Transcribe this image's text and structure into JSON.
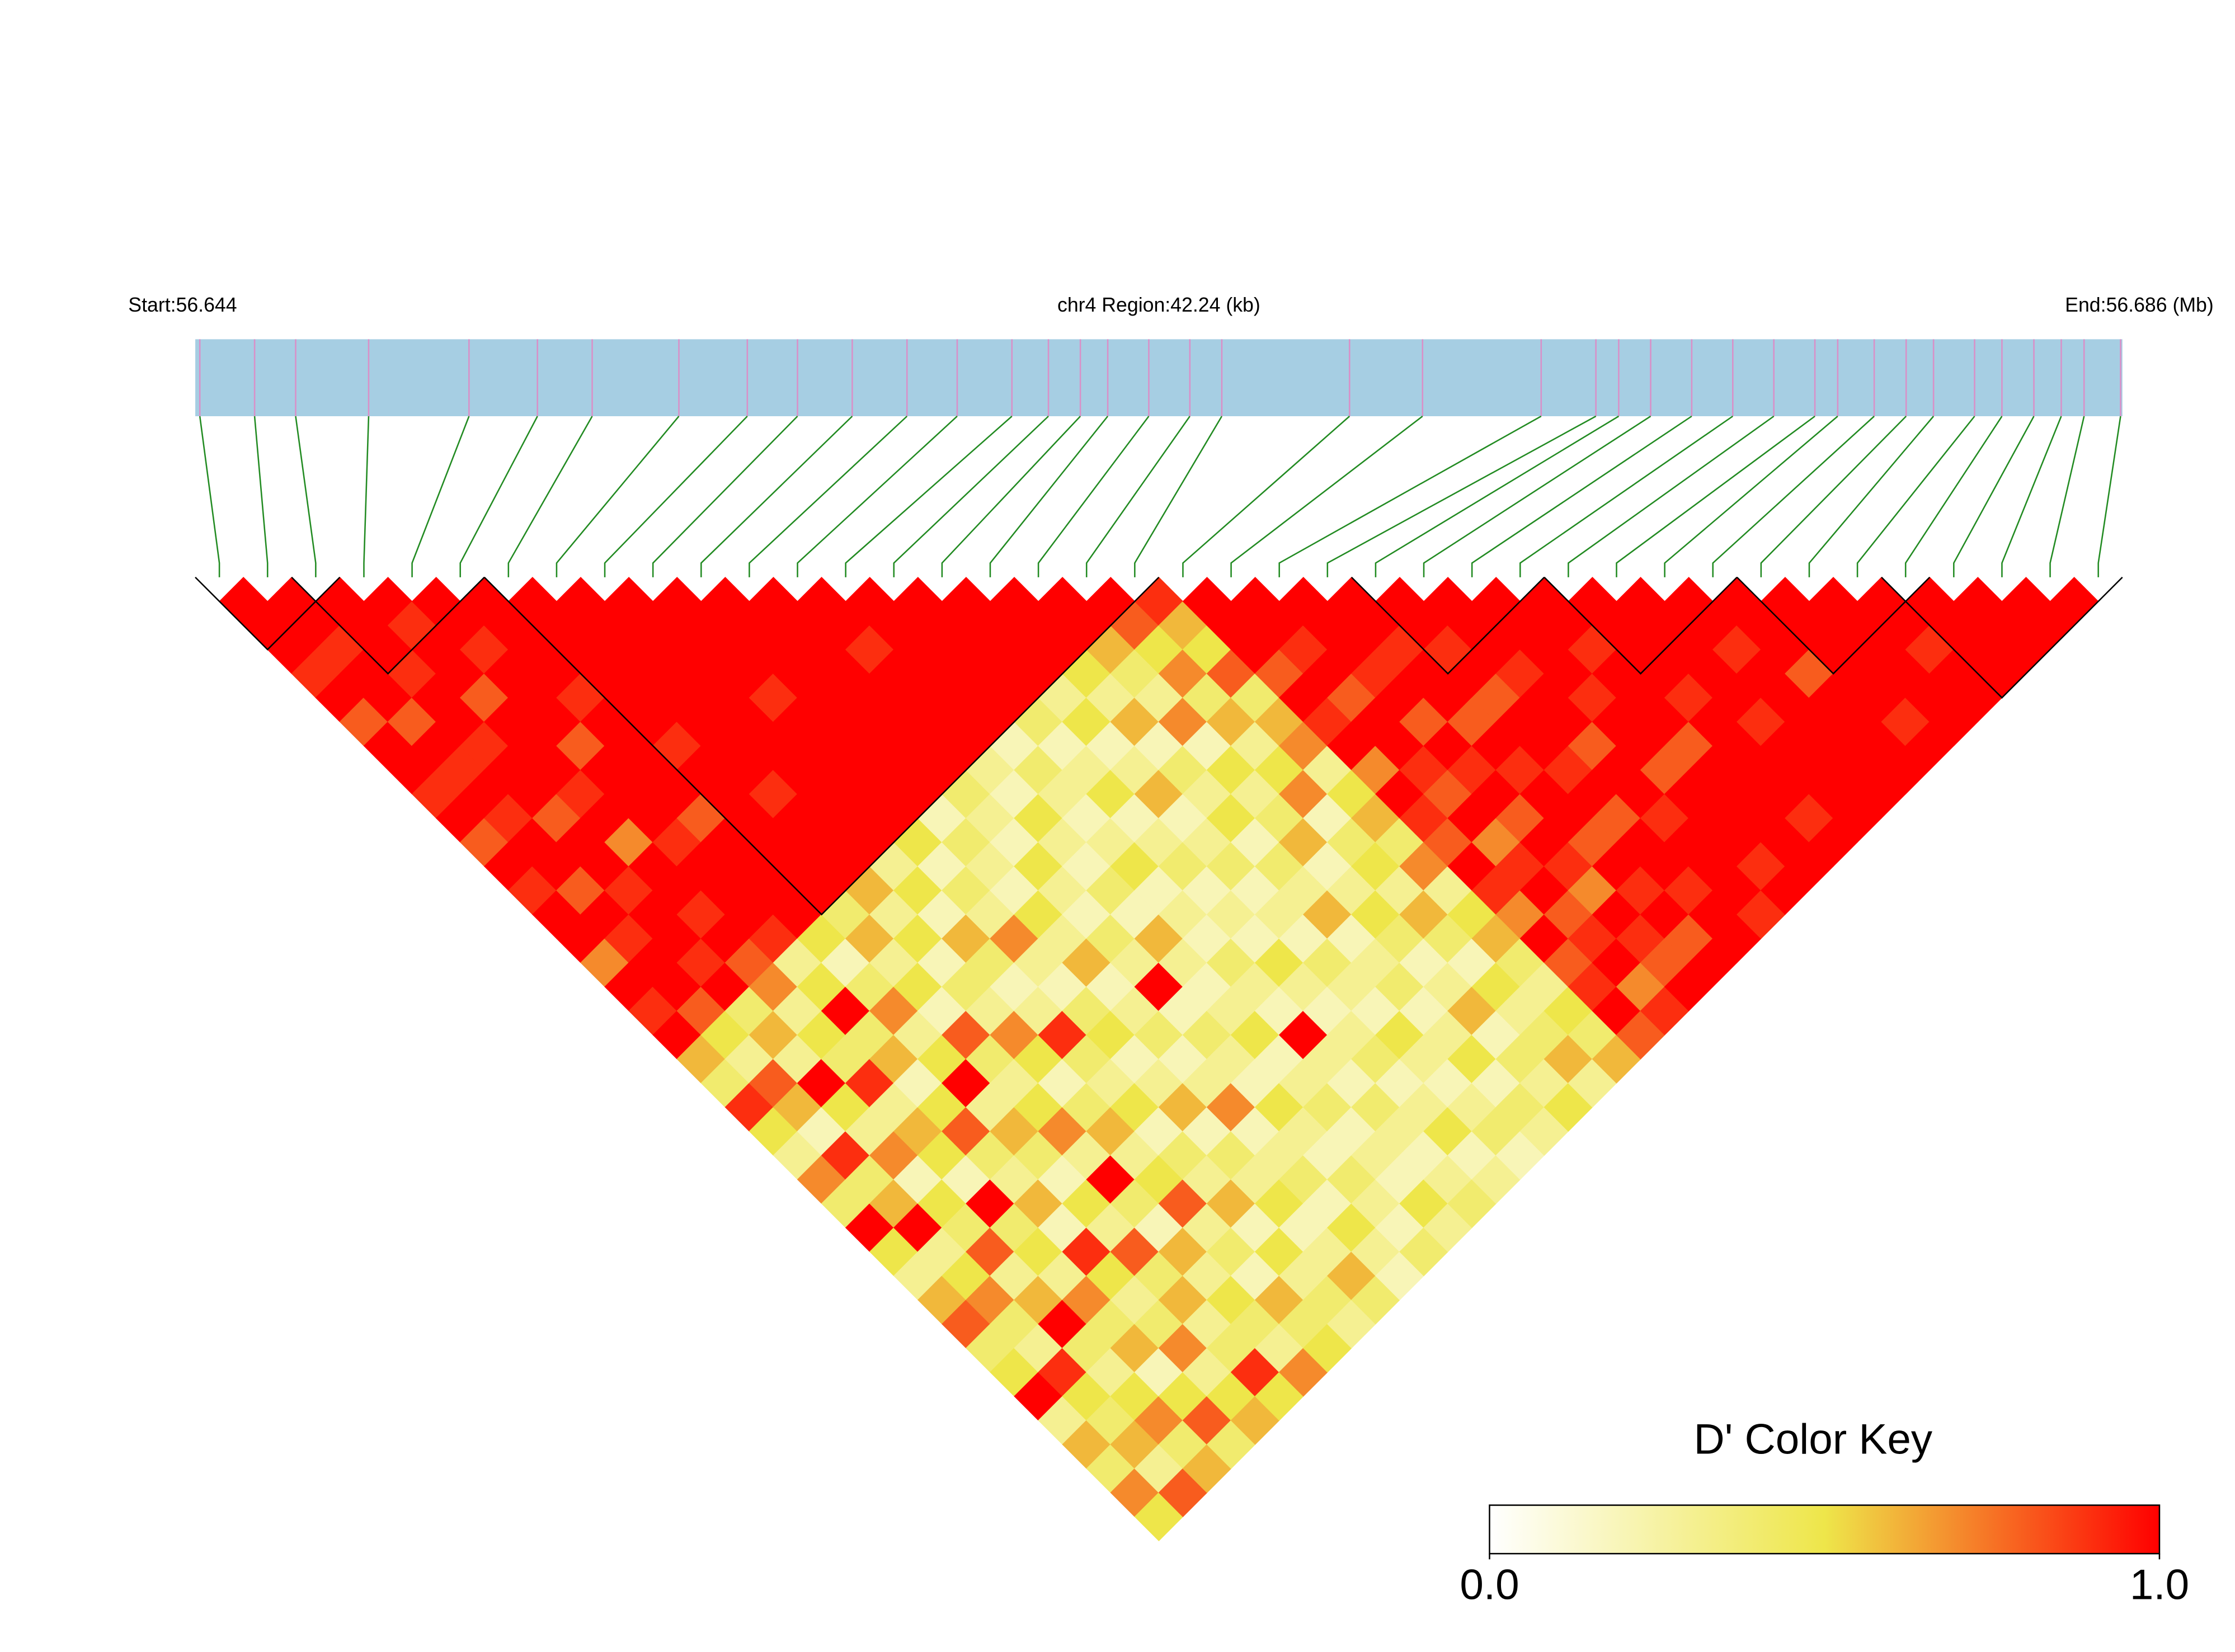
{
  "chart_data": {
    "type": "ld_heatmap",
    "start_label": "Start:56.644",
    "region_label": "chr4 Region:42.24 (kb)",
    "end_label": "End:56.686 (Mb)",
    "legend_title": "D' Color Key",
    "xlim": [
      56.644,
      56.68624
    ],
    "positions": [
      56.6441,
      56.6453,
      56.6462,
      56.6478,
      56.65,
      56.6515,
      56.6527,
      56.6546,
      56.6561,
      56.6572,
      56.6584,
      56.6596,
      56.6607,
      56.6619,
      56.6627,
      56.6634,
      56.664,
      56.6649,
      56.6658,
      56.6665,
      56.6693,
      56.6709,
      56.6735,
      56.6747,
      56.6752,
      56.6759,
      56.6768,
      56.6777,
      56.6786,
      56.6795,
      56.68,
      56.6808,
      56.6815,
      56.6821,
      56.683,
      56.6836,
      56.6843,
      56.6849,
      56.6854,
      56.6862
    ],
    "dprime": [
      [
        1,
        1,
        1,
        0.9,
        1,
        0.8,
        1,
        1,
        0.9,
        1,
        0.8,
        1,
        0.9,
        1,
        1,
        0.7,
        1,
        0.9,
        1,
        0.6,
        0.4,
        0.9,
        0.5,
        0.3,
        0.7,
        0.4,
        1,
        0.5,
        0.3,
        0.6,
        0.8,
        0.4,
        0.5,
        1,
        0.3,
        0.6,
        0.4,
        0.7,
        0.5
      ],
      [
        1,
        1,
        0.9,
        1,
        1,
        0.8,
        1,
        0.9,
        1,
        0.9,
        1,
        1,
        0.8,
        1,
        0.9,
        1,
        1,
        0.8,
        0.5,
        0.3,
        0.8,
        0.6,
        0.2,
        0.9,
        0.4,
        0.6,
        1,
        0.3,
        0.5,
        0.7,
        0.4,
        0.3,
        0.9,
        0.5,
        0.4,
        0.6,
        0.3,
        0.8
      ],
      [
        1,
        1,
        1,
        0.9,
        1,
        1,
        0.9,
        1,
        1,
        0.8,
        1,
        1,
        0.9,
        1,
        1,
        0.9,
        1,
        0.4,
        0.6,
        0.3,
        1,
        0.5,
        0.3,
        0.7,
        0.2,
        0.5,
        0.4,
        0.8,
        0.3,
        0.6,
        1,
        0.4,
        0.3,
        0.5,
        0.7,
        0.4,
        0.6
      ],
      [
        1,
        0.9,
        1,
        1,
        0.8,
        1,
        1,
        1,
        0.9,
        1,
        0.7,
        1,
        1,
        0.9,
        1,
        0.8,
        0.7,
        0.3,
        0.5,
        0.4,
        0.9,
        0.3,
        0.6,
        0.5,
        0.2,
        1,
        0.4,
        0.5,
        0.3,
        0.7,
        0.4,
        0.6,
        0.2,
        0.5,
        0.8,
        0.4
      ],
      [
        1,
        1,
        0.9,
        1,
        1,
        1,
        0.8,
        1,
        1,
        1,
        0.9,
        1,
        1,
        1,
        0.9,
        0.3,
        0.5,
        1,
        0.4,
        0.6,
        0.2,
        0.5,
        0.8,
        0.4,
        0.3,
        0.6,
        0.2,
        0.9,
        0.5,
        0.3,
        0.4,
        0.7,
        0.3,
        0.5,
        0.6
      ],
      [
        1,
        1,
        1,
        1,
        0.9,
        1,
        1,
        1,
        1,
        0.8,
        1,
        1,
        1,
        1,
        0.5,
        0.2,
        0.4,
        0.7,
        0.3,
        0.5,
        1,
        0.3,
        0.6,
        0.4,
        0.2,
        0.5,
        0.3,
        0.8,
        0.4,
        0.6,
        0.3,
        0.4,
        0.9,
        0.5
      ],
      [
        1,
        1,
        1,
        1,
        1,
        1,
        0.9,
        1,
        1,
        1,
        1,
        1,
        1,
        0.4,
        0.6,
        0.3,
        0.5,
        0.2,
        0.8,
        0.4,
        0.3,
        0.5,
        0.7,
        0.3,
        1,
        0.4,
        0.2,
        0.6,
        0.3,
        0.5,
        0.4,
        0.3,
        0.7
      ],
      [
        1,
        1,
        1,
        1,
        1,
        1,
        1,
        1,
        0.9,
        1,
        1,
        1,
        0.6,
        0.3,
        0.5,
        0.2,
        0.4,
        0.3,
        0.7,
        0.5,
        0.2,
        0.4,
        0.6,
        0.3,
        0.5,
        0.8,
        0.3,
        0.4,
        0.2,
        0.6,
        0.4,
        0.5
      ],
      [
        1,
        1,
        1,
        1,
        1,
        1,
        1,
        1,
        1,
        1,
        1,
        0.3,
        0.5,
        0.2,
        0.6,
        0.4,
        0.2,
        0.3,
        0.9,
        0.4,
        0.3,
        0.5,
        0.2,
        0.4,
        0.3,
        0.6,
        0.2,
        0.5,
        0.3,
        0.4,
        0.3
      ],
      [
        1,
        1,
        1,
        1,
        0.9,
        1,
        1,
        1,
        1,
        1,
        0.5,
        0.2,
        0.4,
        0.3,
        0.7,
        0.3,
        0.2,
        0.4,
        0.5,
        0.2,
        0.3,
        0.6,
        0.2,
        0.4,
        0.3,
        0.5,
        0.2,
        0.3,
        0.6,
        0.4
      ],
      [
        1,
        1,
        1,
        1,
        1,
        1,
        1,
        1,
        1,
        0.2,
        0.4,
        0.3,
        0.2,
        0.5,
        0.3,
        0.6,
        0.2,
        0.3,
        0.4,
        0.2,
        0.3,
        0.7,
        0.2,
        0.3,
        0.4,
        0.2,
        0.5,
        0.3,
        0.2
      ],
      [
        1,
        1,
        1,
        1,
        1,
        1,
        1,
        1,
        0.4,
        0.3,
        0.2,
        0.5,
        0.3,
        0.2,
        0.4,
        0.3,
        1,
        0.2,
        0.4,
        0.3,
        0.2,
        0.5,
        0.3,
        0.2,
        0.4,
        0.3,
        0.2,
        0.4
      ],
      [
        1,
        1,
        0.9,
        1,
        1,
        1,
        1,
        0.3,
        0.2,
        0.5,
        0.3,
        0.2,
        0.4,
        0.2,
        0.6,
        0.3,
        0.2,
        0.3,
        0.5,
        0.2,
        0.3,
        0.4,
        0.2,
        0.3,
        0.2,
        0.5,
        0.3
      ],
      [
        1,
        1,
        1,
        1,
        1,
        1,
        0.2,
        0.4,
        0.3,
        0.2,
        0.3,
        0.5,
        0.2,
        0.3,
        0.2,
        0.4,
        0.3,
        0.2,
        1,
        0.3,
        0.2,
        0.4,
        0.3,
        0.2,
        0.3,
        0.4
      ],
      [
        1,
        1,
        1,
        1,
        1,
        0.4,
        0.2,
        0.3,
        0.5,
        0.2,
        0.3,
        0.4,
        0.2,
        0.3,
        0.2,
        0.5,
        0.3,
        0.2,
        0.3,
        0.4,
        0.2,
        0.3,
        0.5,
        0.2,
        0.3
      ],
      [
        1,
        1,
        1,
        1,
        0.3,
        0.5,
        0.2,
        0.3,
        0.6,
        0.2,
        0.3,
        0.4,
        0.2,
        0.3,
        0.2,
        0.4,
        0.3,
        0.2,
        0.5,
        0.3,
        0.2,
        0.3,
        0.4,
        0.2
      ],
      [
        1,
        1,
        1,
        0.5,
        0.3,
        0.6,
        0.2,
        0.4,
        0.3,
        0.5,
        0.2,
        0.4,
        0.3,
        0.6,
        0.2,
        0.3,
        0.4,
        0.2,
        0.3,
        0.5,
        0.2,
        0.4,
        0.3
      ],
      [
        1,
        1,
        0.6,
        0.4,
        0.3,
        0.7,
        0.2,
        0.5,
        0.3,
        0.4,
        0.6,
        0.2,
        0.3,
        0.5,
        0.4,
        0.2,
        0.3,
        0.6,
        0.2,
        0.4,
        0.3,
        0.5
      ],
      [
        1,
        0.8,
        0.5,
        0.7,
        0.4,
        0.6,
        0.3,
        0.5,
        0.7,
        0.2,
        0.4,
        0.5,
        0.3,
        0.6,
        0.4,
        0.2,
        0.5,
        0.3,
        0.4,
        0.6,
        0.3
      ],
      [
        0.9,
        0.6,
        0.5,
        0.8,
        0.4,
        0.6,
        0.7,
        0.3,
        0.5,
        0.6,
        0.4,
        0.7,
        0.3,
        0.5,
        0.6,
        0.4,
        0.3,
        0.5,
        0.4,
        0.6
      ],
      [
        1,
        1,
        1,
        0.8,
        1,
        0.9,
        1,
        0.7,
        1,
        0.9,
        0.8,
        1,
        0.9,
        0.7,
        1,
        0.8,
        0.9,
        1,
        0.8
      ],
      [
        1,
        1,
        0.9,
        1,
        0.8,
        1,
        1,
        0.9,
        0.8,
        1,
        0.7,
        0.9,
        1,
        0.8,
        0.9,
        1,
        0.7,
        0.9
      ],
      [
        1,
        1,
        1,
        0.9,
        1,
        0.8,
        1,
        0.9,
        1,
        0.8,
        1,
        0.9,
        0.7,
        1,
        0.9,
        0.8,
        1
      ],
      [
        1,
        1,
        0.9,
        1,
        1,
        0.8,
        1,
        0.9,
        1,
        1,
        0.8,
        1,
        0.9,
        1,
        0.8,
        1
      ],
      [
        1,
        1,
        0.9,
        1,
        0.8,
        1,
        1,
        0.9,
        1,
        0.8,
        1,
        1,
        0.9,
        1,
        1
      ],
      [
        1,
        1,
        1,
        0.9,
        1,
        1,
        0.8,
        1,
        1,
        0.9,
        1,
        1,
        1,
        0.9
      ],
      [
        1,
        1,
        1,
        1,
        0.9,
        1,
        1,
        0.8,
        1,
        1,
        1,
        0.9,
        1
      ],
      [
        1,
        1,
        0.9,
        1,
        1,
        1,
        0.8,
        1,
        1,
        1,
        1,
        1
      ],
      [
        1,
        1,
        1,
        1,
        0.9,
        1,
        1,
        1,
        1,
        0.9,
        1
      ],
      [
        1,
        1,
        1,
        1,
        1,
        0.9,
        1,
        1,
        1,
        1
      ],
      [
        1,
        1,
        0.9,
        1,
        1,
        1,
        1,
        1,
        1
      ],
      [
        1,
        1,
        1,
        0.8,
        1,
        1,
        1,
        1
      ],
      [
        1,
        1,
        1,
        1,
        1,
        0.9,
        1
      ],
      [
        1,
        1,
        1,
        1,
        1,
        1
      ],
      [
        1,
        1,
        0.9,
        1,
        1
      ],
      [
        1,
        1,
        1,
        1
      ],
      [
        1,
        1,
        1
      ],
      [
        1,
        1
      ],
      [
        1
      ]
    ],
    "blocks": [
      [
        0,
        2
      ],
      [
        2,
        5
      ],
      [
        6,
        19
      ],
      [
        24,
        27
      ],
      [
        28,
        31
      ],
      [
        32,
        35
      ],
      [
        35,
        39
      ]
    ],
    "map_color": "#a6cee3",
    "tick_color": "#d990c8",
    "connector_color": "#228b22",
    "colors": [
      "#ffffff",
      "#eee64a",
      "#ff0000"
    ],
    "legend_ticks": [
      {
        "value": 0,
        "label": "0.0"
      },
      {
        "value": 1,
        "label": "1.0"
      }
    ]
  }
}
